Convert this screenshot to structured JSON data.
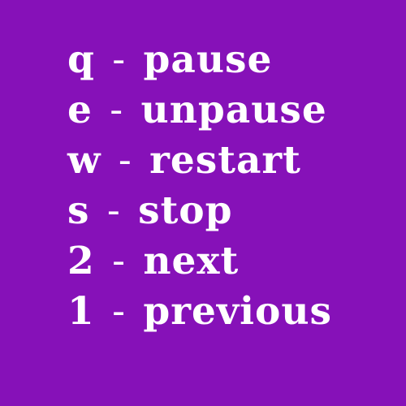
{
  "background_color": "#8611b8",
  "text_color": "#ffffff",
  "separator": "-",
  "shortcuts": [
    {
      "key": "q",
      "action": "pause"
    },
    {
      "key": "e",
      "action": "unpause"
    },
    {
      "key": "w",
      "action": "restart"
    },
    {
      "key": "s",
      "action": "stop"
    },
    {
      "key": "2",
      "action": "next"
    },
    {
      "key": "1",
      "action": "previous"
    }
  ]
}
